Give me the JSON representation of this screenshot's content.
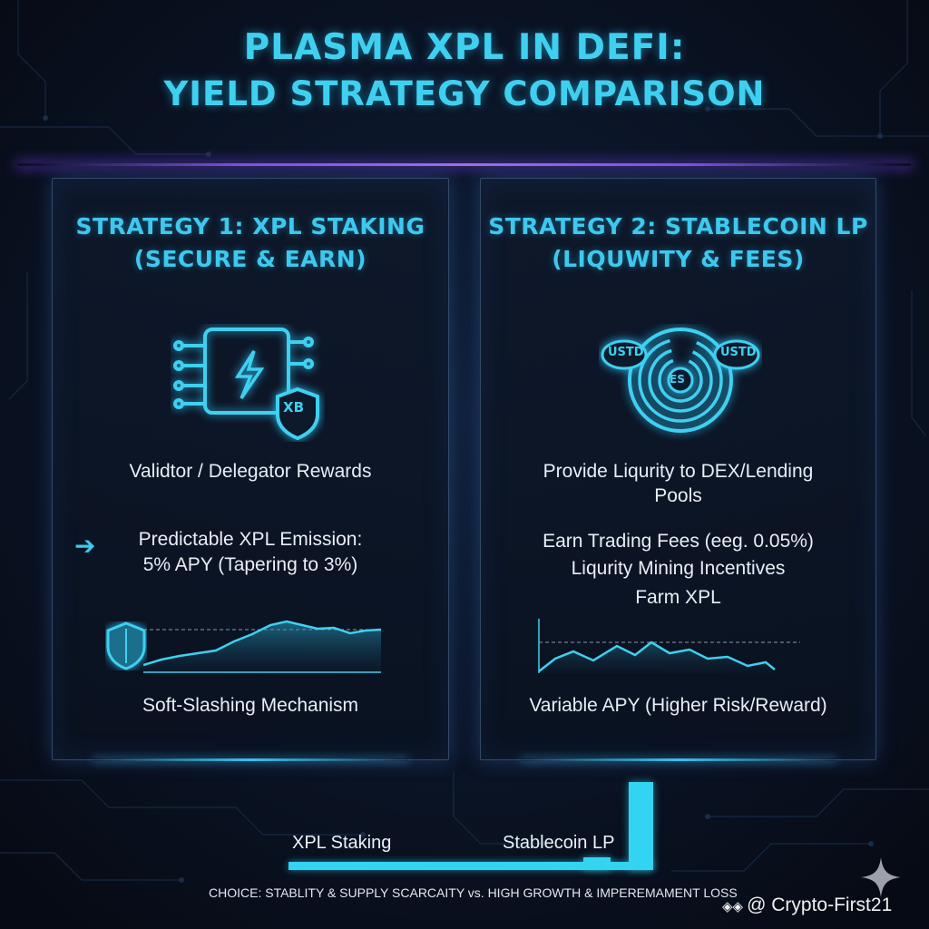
{
  "title": {
    "line1": "PLASMA XPL IN DEFI:",
    "line2": "YIELD STRATEGY COMPARISON"
  },
  "strategy1": {
    "heading": "STRATEGY 1: XPL STAKING",
    "subheading": "(SECURE & EARN)",
    "icon_name": "chip-shield-icon",
    "icon_badge": "XB",
    "reward_text": "Validtor / Delegator Rewards",
    "emission_line1": "Predictable XPL Emission:",
    "emission_line2": "5% APY (Tapering to 3%)",
    "chart_icon": "shield-icon",
    "footer": "Soft-Slashing Mechanism"
  },
  "strategy2": {
    "heading": "STRATEGY 2: STABLECOIN LP",
    "subheading": "(LIQUWITY & FEES)",
    "icon_name": "liquidity-swirl-icon",
    "coin_left": "USTD",
    "coin_center": "ES",
    "coin_right": "USTD",
    "provide_line1": "Provide Liqurity to DEX/Lending",
    "provide_line2": "Pools",
    "fees_line1": "Earn Trading Fees (eeg. 0.05%)",
    "fees_line2": "Liqurity Mining Incentives",
    "fees_line3": "Farm XPL",
    "footer": "Variable APY (Higher Risk/Reward)"
  },
  "comparison": {
    "label_staking": "XPL Staking",
    "label_lp": "Stablecoin LP",
    "choice": "CHOICE: STABLITY & SUPPLY SCARCAITY vs. HIGH GROWTH & IMPEREMAMENT LOSS"
  },
  "watermark": {
    "symbol": "◈◈",
    "handle": "@ Crypto-First21"
  },
  "colors": {
    "accent": "#3fd0f0",
    "background": "#0a1020",
    "glow_purple": "#9a5cff"
  }
}
